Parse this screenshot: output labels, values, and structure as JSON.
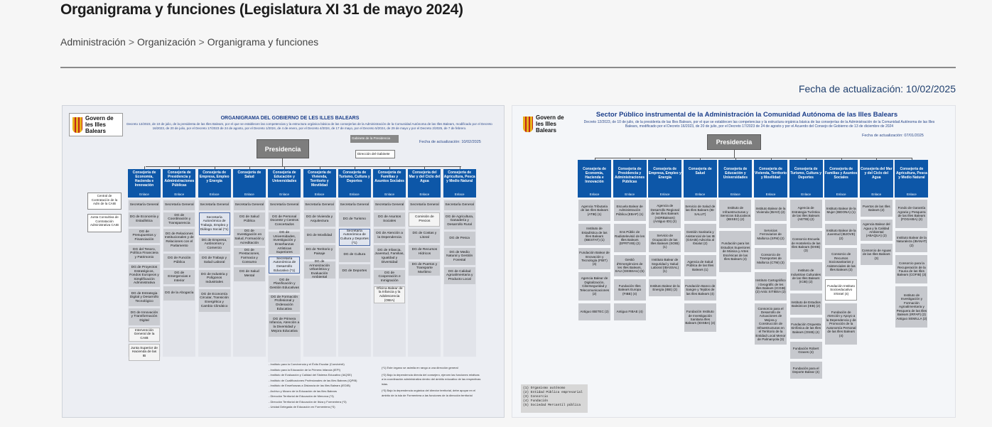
{
  "page": {
    "title": "Organigrama y funciones (Legislatura XI 31 de mayo 2024)",
    "breadcrumb": [
      "Administración",
      "Organización",
      "Organigrama y funciones"
    ],
    "breadcrumb_sep": ">",
    "updated": "Fecha de actualización: 10/02/2025"
  },
  "chart1": {
    "logo": "Govern de les Illes Balears",
    "title": "ORGANIGRAMA DEL GOBIERNO DE LES ILLES BALEARS",
    "subtitle": "Decreto 12/2023, de 10 de julio, de la presidenta de las Illes Balears, por el que se establecen las competencias y la estructura orgánica básica de las consejerías de la Administración de la Comunidad Autónoma de las Illes Balears, modificado por el Decreto 16/2023, de 20 de julio, por el Decreto 17/2023 de 24 de agosto, por el Decreto 1/2024, de 4 de enero, por el Decreto 4/2024, de 17 de mayo, por el Decreto 5/2024, de 29 de mayo y por el Decreto 2/2025, de 7 de febrero.",
    "date": "Fecha de actualización: 10/02/2025",
    "presidencia": "Presidencia",
    "gabinete": "Gabinete de la Presidencia",
    "dir_gabinete": "Dirección del Gabinete",
    "enlace": "Enlace",
    "side": [
      "Central de Contratación de la Adm de la CAIB",
      "Junta Consultiva de Contratación Administrativa CAIB"
    ],
    "departments": [
      {
        "name": "Consejería de Economía, Hacienda e Innovación",
        "cells": [
          "Secretaría General",
          "DG de Economía y Estadística",
          "DG de Presupuestos y Financiación",
          "DG del Tesoro, Política Financiera y Patrimonio",
          "DG de Proyectos Estratégicos, Fondos Europeos y Simplificación Administrativa",
          "DG de Estrategia Digital y Desarrollo Tecnológico",
          "DG de Innovación y Transformación Digital",
          "Intervención General de la CAIB",
          "Junta Superior de Hacienda de las IB"
        ]
      },
      {
        "name": "Consejería de Presidencia y Administraciones Públicas",
        "cells": [
          "Secretaría General",
          "DG de Coordinación y Transparencia",
          "DG de Relaciones Institucionales y de Relaciones con el Parlamento",
          "DG de Función Pública",
          "DG de Emergencias e Interior",
          "DG de la Abogacía"
        ]
      },
      {
        "name": "Consejería de Empresa, Empleo y Energía",
        "cells": [
          "Secretaría General",
          "Secretaría Autonómica de Trabajo, Empleo y Diálogo Social (*1)",
          "DG de Empresa, Autónomos y Comercio",
          "DG de Trabajo y Salud Laboral",
          "DG de Industria y Polígonos Industriales",
          "DG de Economía Circular, Transición Energética y Cambio Climático"
        ]
      },
      {
        "name": "Consejería de Salud",
        "cells": [
          "Secretaría General",
          "DG de Salud Pública",
          "DG de Investigación en Salud, Formación y Acreditación",
          "DG de Prestaciones, Farmacia y Consumo",
          "DG de Salud Mental"
        ]
      },
      {
        "name": "Consejería de Educación y Universidades",
        "cells": [
          "Secretaría General",
          "DG de Personal Docente y Centros Concertados",
          "DG de Universidades, Investigación y Enseñanzas Artísticas Superiores",
          "Secretaría Autonómica de Desarrollo Educativo (*1)",
          "DG de Planificación y Gestión Educativas",
          "DG de Formación Profesional y Ordenación Educativa",
          "DG de Primera Infancia, Atención a la Diversidad y Mejora Educativa"
        ]
      },
      {
        "name": "Consejería de Vivienda, Territorio y Movilidad",
        "cells": [
          "Secretaría General",
          "DG de Vivienda y Arquitectura",
          "DG de Movilidad",
          "DG de Territorio y Paisaje",
          "DG de Armonización Urbanística y Evaluación Ambiental"
        ]
      },
      {
        "name": "Consejería de Turismo, Cultura y Deportes",
        "cells": [
          "Secretaría General",
          "DG de Turismo",
          "Secretaría Autonómica de Cultura y Deportes (*1)",
          "DG de Cultura",
          "DG de Deportes"
        ]
      },
      {
        "name": "Consejería de Familias y Asuntos Sociales",
        "cells": [
          "Secretaría General",
          "DG de Asuntos Sociales",
          "DG de Atención a la Dependencia",
          "DG de Infancia, Juventud, Familias, Igualdad y Diversidad",
          "DG de Cooperación e Inmigración",
          "Oficina Balear de la Infancia y la Adolescencia (OBIA)"
        ]
      },
      {
        "name": "Consejería del Mar y del Ciclo del Agua",
        "cells": [
          "Secretaría General",
          "Comisión de Precios",
          "DG de Costas y Litoral",
          "DG de Recursos Hídricos",
          "DG de Puertos y Transporte Marítimo"
        ]
      },
      {
        "name": "Consejería de Agricultura, Pesca y Medio Natural",
        "cells": [
          "Secretaría General",
          "DG de Agricultura, Ganadería y Desarrollo Rural",
          "DG de Pesca",
          "DG de Medio Natural y Gestión Forestal",
          "DG de Calidad Agroalimentaria y Producto Local"
        ]
      }
    ],
    "notes_left": [
      "- Instituto para la Convivencia y el Éxito Escolar (Convivèxit)",
      "- Instituto para la Educación de la Primera Infancia (IEPI)",
      "- Instituto de Evaluación y Calidad del Sistema Educativo (IAQSE)",
      "- Instituto de Cualificaciones Profesionales de las Illes Balears (IQPIB)",
      "- Instituto de Enseñanzas a Distancia de las Illes Balears (IEDIB)",
      "- Archivo y Museo de la Educación de las Illes Balears",
      "- Dirección Territorial de Educación de Menorca (*3)",
      "- Dirección Territorial de Educación de Ibiza y Formentera (*3)",
      "- Unidad Delegada de Educación en Formentera (*3)"
    ],
    "notes_right": [
      "(*1) Este órgano se asimila en rango a una dirección general",
      "(*2) Bajo la dependencia directa del consejero, ejercen las funciones relativas a la coordinación administrativa dentro del ámbito educativo de las respectivas islas.",
      "(*3) Bajo la dependencia orgánica del director territorial, debe apoyar en el ámbito de la isla de Formentera a las funciones de la dirección territorial"
    ]
  },
  "chart2": {
    "logo": "Govern de les Illes Balears",
    "title": "Sector Público instrumental de la Administración la Comunidad Autónoma de las Illes Balears",
    "subtitle": "Decreto 12/2023, de 10 de julio, de la presidenta de las Illes Balears, por el que se establecen las competencias y la estructura orgánica básica de las consejerías de la Administración de la Comunidad Autónoma de las Illes Balears, modificado por el Decreto 16/2023, de 20 de julio, por el Decreto 17/2023 de 24 de agosto y por el Acuerdo del Consejo de Gobierno de 13 de diciembre de 2024",
    "date": "Fecha de actualización: 07/01/2025",
    "presidencia": "Presidencia",
    "enlace": "Enlace",
    "departments": [
      {
        "name": "Consejería de Economía, Hacienda e Innovación",
        "cells": [
          "Agencia Tributaria de las Illes Balears (ATIB) (1)",
          "Instituto de Estadística de las Illes Balears (IBESTAT) (1)",
          "Fundación Balear de Innovación y Tecnología (FBIT) (4)",
          "Agencia Balear de Digitalización, Ciberseguridad y Telecomunicaciones (2)",
          "Antiguo IBETEC (2)"
        ]
      },
      {
        "name": "Consejería de Presidencia y Administraciones Públicas",
        "cells": [
          "Escuela Balear de Administración Pública (EBAP) (1)",
          "Ens Públic de Radiotelevisió de les Illes Balears (EPRTVIB) (2)",
          "Gestió d'Emergències de les Illes Balears, SAU (GEIBSAU) (5)",
          "Fundación Illes Balears Europa (FIBE) (4)",
          "Antiguo FIBAE (4)"
        ]
      },
      {
        "name": "Consejería de Empresa, Empleo y Energía",
        "cells": [
          "Agencia de Desarrollo Regional de las Illes Balears (ADRBalears) (Antiguo IDI) (2)",
          "Servicio de Ocupación de las Illes Balears (SOIB) (1)",
          "Instituto Balear de Seguridad y Salud Laboral (IBASSAL) (1)",
          "Instituto Balear de la Energía (IBE) (2)"
        ]
      },
      {
        "name": "Consejería de Salud",
        "cells": [
          "Servicio de Salud de las Illes Balears (IB-SALUT)",
          "Gestión Sanitaria y Asistencial de las IB (GSAIB) Adscrita al Ibsalut (2)",
          "Agencia de Salud Pública de las Illes Balears (1)",
          "Fundación Banco de Sangre y Tejidos de las Illes Balears (4)",
          "Fundación Instituto de Investigación Sanitaria Illes Balears (IDISBA) (4)"
        ]
      },
      {
        "name": "Consejería de Educación y Universidades",
        "cells": [
          "Instituto de Infraestructuras y Servicios Educativos (IBISEC) (2)",
          "Fundación para los Estudios Superiores de Música y Artes Escénicas de las Illes Balears (4)"
        ]
      },
      {
        "name": "Consejería de Vivienda, Territorio y Movilidad",
        "cells": [
          "Instituto Balear de la Vivienda (IBAVI) (2)",
          "Servicios Ferroviarios de Mallorca (SFM) (2)",
          "Consorcio de Transportes de Mallorca (CTM) (3)",
          "Instituto Cartográfico i Geográfic de les Illes Balears (ICGIB) (2) Antic SITIBSA (2)",
          "Consorcio para el Desarrollo de Actuaciones de Mejora y Construcción de Infraestructuras en el Territorio de la Entidad Local Menor de Palmanyola (3)"
        ]
      },
      {
        "name": "Consejería de Turismo, Cultura y Deportes",
        "cells": [
          "Agencia de Estrategia Turística de las Illes Balears (AETIB) (2)",
          "Consorcio Escuela de Hostelería de las Illes Balears (EHIB) (3)",
          "Instituto de Industrias Culturales de las Illes Balears (ICIB) (2)",
          "Instituto de Estudios Baleáricos (IEB) (2)",
          "Fundación Orquesta Sinfónica de las Illes Balears (OSIB) (4)",
          "Fundación Robert Graves (4)",
          "Fundación para el Deporte Balear (4)"
        ]
      },
      {
        "name": "Consejería de Familias y Asuntos Sociales",
        "cells": [
          "Instituto Balear de la Mujer (IBDONA) (1)",
          "Instituto Balear de la Juventud (IBJOVE) (2)",
          "Consorcio de Recursos Sociosanitarios y Asistenciales de las Illes Balears (3)",
          "Fundación Instituto Socioeducativo S'Estel (4)",
          "Fundación de Atención y Apoyo a la Dependencia y de Promoción de la Autonomía Personal de las Illes Balears (4)"
        ]
      },
      {
        "name": "Consejería del Mar y del Ciclo del Agua",
        "cells": [
          "Puertos de las Illes Balears (2)",
          "Agencia Balear del Agua y la Calidad Ambiental (ABAQUA) (2)",
          "Consorcio de Aguas de las Illes Balears (3)"
        ]
      },
      {
        "name": "Consejería de Agricultura, Pesca y Medio Natural",
        "cells": [
          "Fondo de Garantía Agraria y Pesquera de las Illes Balears (FOGAIBA) (2)",
          "Instituto Balear de la Naturaleza (IBANAT) (2)",
          "Consorcio para la Recuperación de la Fauna de las Illes Balears (COFIB) (3)",
          "Instituto de Investigación y Formación Agroalimentaria y Pesquera de las Illes Balears (IRFAP) (2) Antiguo SEMILLA (2)"
        ]
      }
    ],
    "legend": [
      "(1) Organismo autónomo",
      "(2) Entidad Pública empresarial",
      "(3) Consorcio",
      "(4) Fundación",
      "(5) Sociedad Mercantil pública"
    ]
  }
}
